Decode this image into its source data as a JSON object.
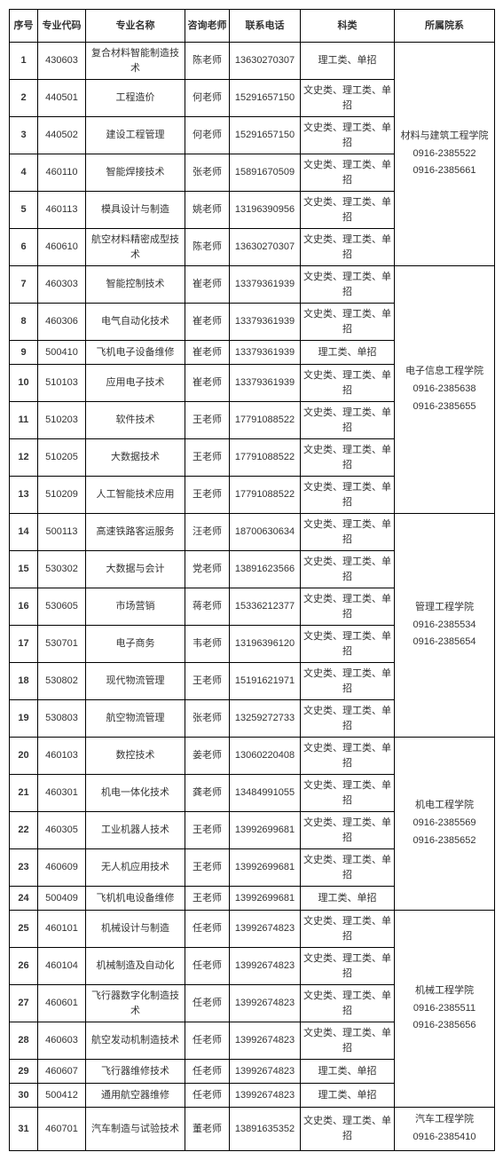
{
  "headers": {
    "idx": "序号",
    "code": "专业代码",
    "name": "专业名称",
    "teacher": "咨询老师",
    "phone": "联系电话",
    "category": "科类",
    "dept": "所属院系"
  },
  "catA": "理工类、单招",
  "catB": "文史类、理工类、单招",
  "rows": [
    {
      "i": "1",
      "code": "430603",
      "name": "复合材料智能制造技术",
      "t": "陈老师",
      "p": "13630270307",
      "c": "A"
    },
    {
      "i": "2",
      "code": "440501",
      "name": "工程造价",
      "t": "何老师",
      "p": "15291657150",
      "c": "B"
    },
    {
      "i": "3",
      "code": "440502",
      "name": "建设工程管理",
      "t": "何老师",
      "p": "15291657150",
      "c": "B"
    },
    {
      "i": "4",
      "code": "460110",
      "name": "智能焊接技术",
      "t": "张老师",
      "p": "15891670509",
      "c": "B"
    },
    {
      "i": "5",
      "code": "460113",
      "name": "模具设计与制造",
      "t": "姚老师",
      "p": "13196390956",
      "c": "B"
    },
    {
      "i": "6",
      "code": "460610",
      "name": "航空材料精密成型技术",
      "t": "陈老师",
      "p": "13630270307",
      "c": "B"
    },
    {
      "i": "7",
      "code": "460303",
      "name": "智能控制技术",
      "t": "崔老师",
      "p": "13379361939",
      "c": "B"
    },
    {
      "i": "8",
      "code": "460306",
      "name": "电气自动化技术",
      "t": "崔老师",
      "p": "13379361939",
      "c": "B"
    },
    {
      "i": "9",
      "code": "500410",
      "name": "飞机电子设备维修",
      "t": "崔老师",
      "p": "13379361939",
      "c": "A"
    },
    {
      "i": "10",
      "code": "510103",
      "name": "应用电子技术",
      "t": "崔老师",
      "p": "13379361939",
      "c": "B"
    },
    {
      "i": "11",
      "code": "510203",
      "name": "软件技术",
      "t": "王老师",
      "p": "17791088522",
      "c": "B"
    },
    {
      "i": "12",
      "code": "510205",
      "name": "大数据技术",
      "t": "王老师",
      "p": "17791088522",
      "c": "B"
    },
    {
      "i": "13",
      "code": "510209",
      "name": "人工智能技术应用",
      "t": "王老师",
      "p": "17791088522",
      "c": "B"
    },
    {
      "i": "14",
      "code": "500113",
      "name": "高速铁路客运服务",
      "t": "汪老师",
      "p": "18700630634",
      "c": "B"
    },
    {
      "i": "15",
      "code": "530302",
      "name": "大数据与会计",
      "t": "党老师",
      "p": "13891623566",
      "c": "B"
    },
    {
      "i": "16",
      "code": "530605",
      "name": "市场营销",
      "t": "蒋老师",
      "p": "15336212377",
      "c": "B"
    },
    {
      "i": "17",
      "code": "530701",
      "name": "电子商务",
      "t": "韦老师",
      "p": "13196396120",
      "c": "B"
    },
    {
      "i": "18",
      "code": "530802",
      "name": "现代物流管理",
      "t": "王老师",
      "p": "15191621971",
      "c": "B"
    },
    {
      "i": "19",
      "code": "530803",
      "name": "航空物流管理",
      "t": "张老师",
      "p": "13259272733",
      "c": "B"
    },
    {
      "i": "20",
      "code": "460103",
      "name": "数控技术",
      "t": "姜老师",
      "p": "13060220408",
      "c": "B"
    },
    {
      "i": "21",
      "code": "460301",
      "name": "机电一体化技术",
      "t": "龚老师",
      "p": "13484991055",
      "c": "B"
    },
    {
      "i": "22",
      "code": "460305",
      "name": "工业机器人技术",
      "t": "王老师",
      "p": "13992699681",
      "c": "B"
    },
    {
      "i": "23",
      "code": "460609",
      "name": "无人机应用技术",
      "t": "王老师",
      "p": "13992699681",
      "c": "B"
    },
    {
      "i": "24",
      "code": "500409",
      "name": "飞机机电设备维修",
      "t": "王老师",
      "p": "13992699681",
      "c": "A"
    },
    {
      "i": "25",
      "code": "460101",
      "name": "机械设计与制造",
      "t": "任老师",
      "p": "13992674823",
      "c": "B"
    },
    {
      "i": "26",
      "code": "460104",
      "name": "机械制造及自动化",
      "t": "任老师",
      "p": "13992674823",
      "c": "B"
    },
    {
      "i": "27",
      "code": "460601",
      "name": "飞行器数字化制造技术",
      "t": "任老师",
      "p": "13992674823",
      "c": "B"
    },
    {
      "i": "28",
      "code": "460603",
      "name": "航空发动机制造技术",
      "t": "任老师",
      "p": "13992674823",
      "c": "B"
    },
    {
      "i": "29",
      "code": "460607",
      "name": "飞行器维修技术",
      "t": "任老师",
      "p": "13992674823",
      "c": "A"
    },
    {
      "i": "30",
      "code": "500412",
      "name": "通用航空器维修",
      "t": "任老师",
      "p": "13992674823",
      "c": "A"
    },
    {
      "i": "31",
      "code": "460701",
      "name": "汽车制造与试验技术",
      "t": "董老师",
      "p": "13891635352",
      "c": "B"
    }
  ],
  "depts": [
    {
      "start": 0,
      "span": 6,
      "name": "材料与建筑工程学院",
      "phones": [
        "0916-2385522",
        "0916-2385661"
      ]
    },
    {
      "start": 6,
      "span": 7,
      "name": "电子信息工程学院",
      "phones": [
        "0916-2385638",
        "0916-2385655"
      ]
    },
    {
      "start": 13,
      "span": 6,
      "name": "管理工程学院",
      "phones": [
        "0916-2385534",
        "0916-2385654"
      ]
    },
    {
      "start": 19,
      "span": 5,
      "name": "机电工程学院",
      "phones": [
        "0916-2385569",
        "0916-2385652"
      ]
    },
    {
      "start": 24,
      "span": 6,
      "name": "机械工程学院",
      "phones": [
        "0916-2385511",
        "0916-2385656"
      ]
    },
    {
      "start": 30,
      "span": 1,
      "name": "汽车工程学院",
      "phones": [
        "0916-2385410"
      ]
    }
  ]
}
